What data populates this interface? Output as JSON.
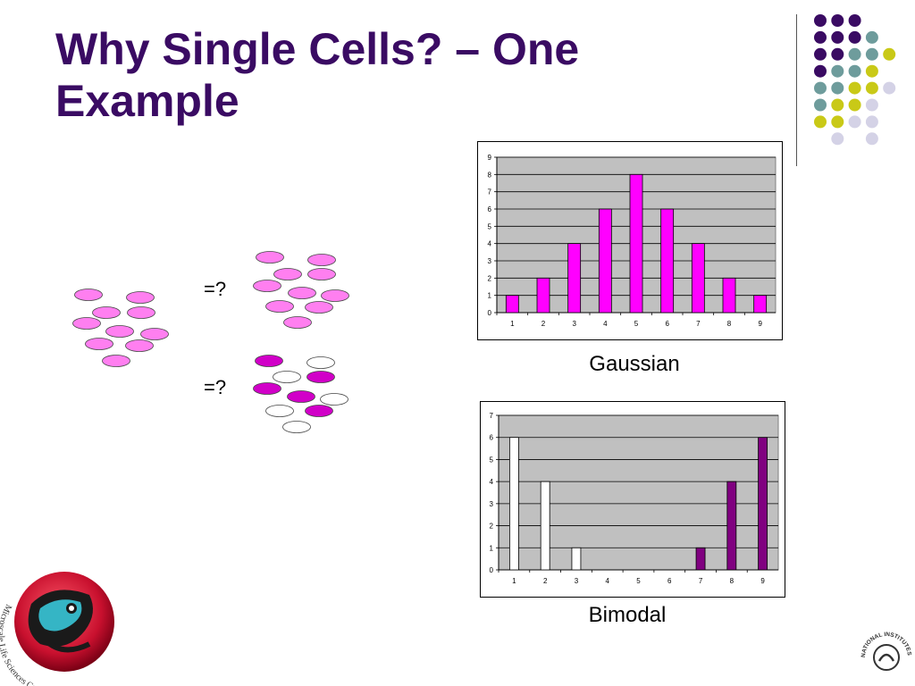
{
  "slide": {
    "title_line1": "Why Single Cells? – One",
    "title_line2": "Example",
    "equals_1": "=?",
    "equals_2": "=?"
  },
  "colors": {
    "title": "#3a0b63",
    "cell_pink": "#ff7ff0",
    "cell_magenta": "#d100c8",
    "bar_gaussian": "#ff00ff",
    "bar_bimodal_high": "#800080",
    "plot_bg": "#c0c0c0",
    "dot_purple": "#3a0b63",
    "dot_teal": "#6e9c9c",
    "dot_yellow": "#c9c917",
    "dot_lavender": "#d4d2e6"
  },
  "logos": {
    "left_text": "Microscale Life Sciences Center",
    "right_text": "NATIONAL INSTITUTES OF HEALTH"
  },
  "chart_data": [
    {
      "type": "bar",
      "caption": "Gaussian",
      "categories": [
        "1",
        "2",
        "3",
        "4",
        "5",
        "6",
        "7",
        "8",
        "9"
      ],
      "values": [
        1,
        2,
        4,
        6,
        8,
        6,
        4,
        2,
        1
      ],
      "ylim": [
        0,
        9
      ],
      "yticks": [
        0,
        1,
        2,
        3,
        4,
        5,
        6,
        7,
        8,
        9
      ],
      "grid": true,
      "legend": "none"
    },
    {
      "type": "bar",
      "caption": "Bimodal",
      "categories": [
        "1",
        "2",
        "3",
        "4",
        "5",
        "6",
        "7",
        "8",
        "9"
      ],
      "series": [
        {
          "values": [
            6,
            4,
            1,
            0,
            0,
            0,
            0,
            0,
            0
          ],
          "color": "#ffffff"
        },
        {
          "values": [
            0,
            0,
            0,
            0,
            0,
            0,
            1,
            4,
            6
          ],
          "color": "#800080"
        }
      ],
      "ylim": [
        0,
        7
      ],
      "yticks": [
        0,
        1,
        2,
        3,
        4,
        5,
        6,
        7
      ],
      "grid": true,
      "legend": "none"
    }
  ]
}
